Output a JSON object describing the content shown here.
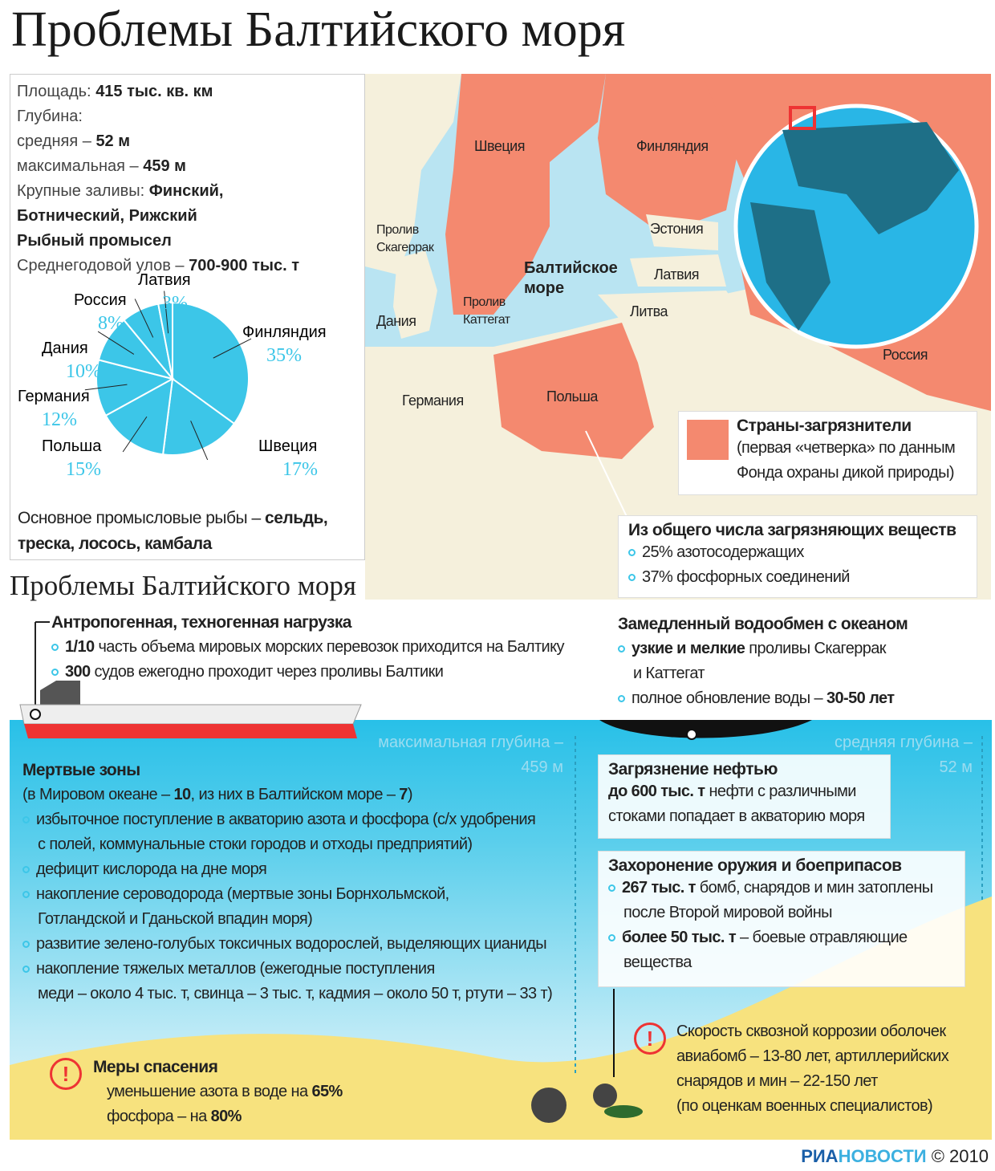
{
  "title": "Проблемы Балтийского моря",
  "info": {
    "area_label": "Площадь:",
    "area_value": "415 тыс. кв. км",
    "depth_label": "Глубина:",
    "avg_label": "средняя –",
    "avg_value": "52 м",
    "max_label": "максимальная –",
    "max_value": "459 м",
    "gulfs_label": "Крупные заливы:",
    "gulfs_value1": "Финский,",
    "gulfs_value2": "Ботнический, Рижский",
    "fishing_heading": "Рыбный промысел",
    "catch_label": "Среднегодовой улов –",
    "catch_value": "700-900 тыс. т",
    "fish_label": "Основное промысловые рыбы –",
    "fish_value1": "сельдь,",
    "fish_value2": "треска, лосось, камбала"
  },
  "chart_data": {
    "type": "pie",
    "categories": [
      "Финляндия",
      "Швеция",
      "Польша",
      "Германия",
      "Дания",
      "Россия",
      "Латвия"
    ],
    "values": [
      35,
      17,
      15,
      12,
      10,
      8,
      3
    ],
    "labels": [
      "35%",
      "17%",
      "15%",
      "12%",
      "10%",
      "8%",
      "3%"
    ],
    "color": "#3cc6e8",
    "start": "top",
    "direction": "clockwise"
  },
  "map": {
    "countries": {
      "sweden": "Швеция",
      "finland": "Финляндия",
      "estonia": "Эстония",
      "latvia": "Латвия",
      "lithuania": "Литва",
      "russia": "Россия",
      "poland": "Польша",
      "germany": "Германия",
      "denmark": "Дания"
    },
    "sea_label1": "Балтийское",
    "sea_label2": "море",
    "skagerrak1": "Пролив",
    "skagerrak2": "Скагеррак",
    "kattegat1": "Пролив",
    "kattegat2": "Каттегат",
    "colors": {
      "polluter": "#f4896f",
      "land": "#f5f0dc",
      "sea": "#b9e4f2",
      "globe": "#29b6e6"
    }
  },
  "legend": {
    "title": "Страны-загрязнители",
    "line1": "(первая «четверка» по данным",
    "line2": "Фонда охраны дикой природы)"
  },
  "pollutants": {
    "title": "Из общего числа загрязняющих веществ",
    "items": [
      "25% азотосодержащих",
      "37% фосфорных соединений"
    ]
  },
  "subtitle": "Проблемы Балтийского моря",
  "anthro": {
    "title": "Антропогенная, техногенная нагрузка",
    "i1b": "1/10",
    "i1": " часть объема мировых морских перевозок приходится на Балтику",
    "i2b": "300",
    "i2": " судов ежегодно проходит через проливы Балтики"
  },
  "exchange": {
    "title": "Замедленный водообмен с океаном",
    "i1b": "узкие и мелкие",
    "i1": " проливы Скагеррак",
    "i1c": "и Каттегат",
    "i2": "полное обновление воды – ",
    "i2b": "30-50 лет"
  },
  "depth_marks": {
    "max1": "максимальная глубина –",
    "max2": "459 м",
    "avg1": "средняя глубина –",
    "avg2": "52 м"
  },
  "dead": {
    "title": "Мертвые зоны",
    "sub1": "(в Мировом океане – ",
    "sub1b": "10",
    "sub2": ", из них в Балтийском море – ",
    "sub2b": "7",
    "sub3": ")",
    "lines": [
      "избыточное поступление в акваторию азота и фосфора (с/х удобрения",
      "с полей, коммунальные стоки городов и отходы предприятий)",
      "дефицит кислорода на дне моря",
      "накопление сероводорода (мертвые зоны Борнхольмской,",
      "Готландской и Гданьской впадин моря)",
      "развитие зелено-голубых токсичных водорослей, выделяющих цианиды",
      "накопление тяжелых металлов (ежегодные поступления",
      "меди – около 4 тыс. т, свинца – 3 тыс. т, кадмия – около 50 т, ртути – 33 т)"
    ]
  },
  "oil": {
    "title": "Загрязнение нефтью",
    "l1b": "до 600 тыс. т",
    "l1": " нефти с различными",
    "l2": "стоками попадает в акваторию моря"
  },
  "weapons": {
    "title": "Захоронение оружия и боеприпасов",
    "i1b": "267 тыс. т",
    "i1": " бомб, снарядов и мин затоплены",
    "i1c": "после Второй мировой войны",
    "i2b": "более 50 тыс. т",
    "i2": " – боевые отравляющие",
    "i2c": "вещества"
  },
  "rescue": {
    "title": "Меры спасения",
    "i1": "уменьшение азота в воде на ",
    "i1b": "65%",
    "i2": "фосфора – на ",
    "i2b": "80%"
  },
  "corrosion": {
    "lines": [
      "Скорость сквозной коррозии оболочек",
      "авиабомб – 13-80 лет, артиллерийских",
      "снарядов и мин – 22-150 лет",
      "(по оценкам военных специалистов)"
    ]
  },
  "footer": {
    "brand1": "РИА",
    "brand2": "НОВОСТИ",
    "year": "© 2010"
  }
}
